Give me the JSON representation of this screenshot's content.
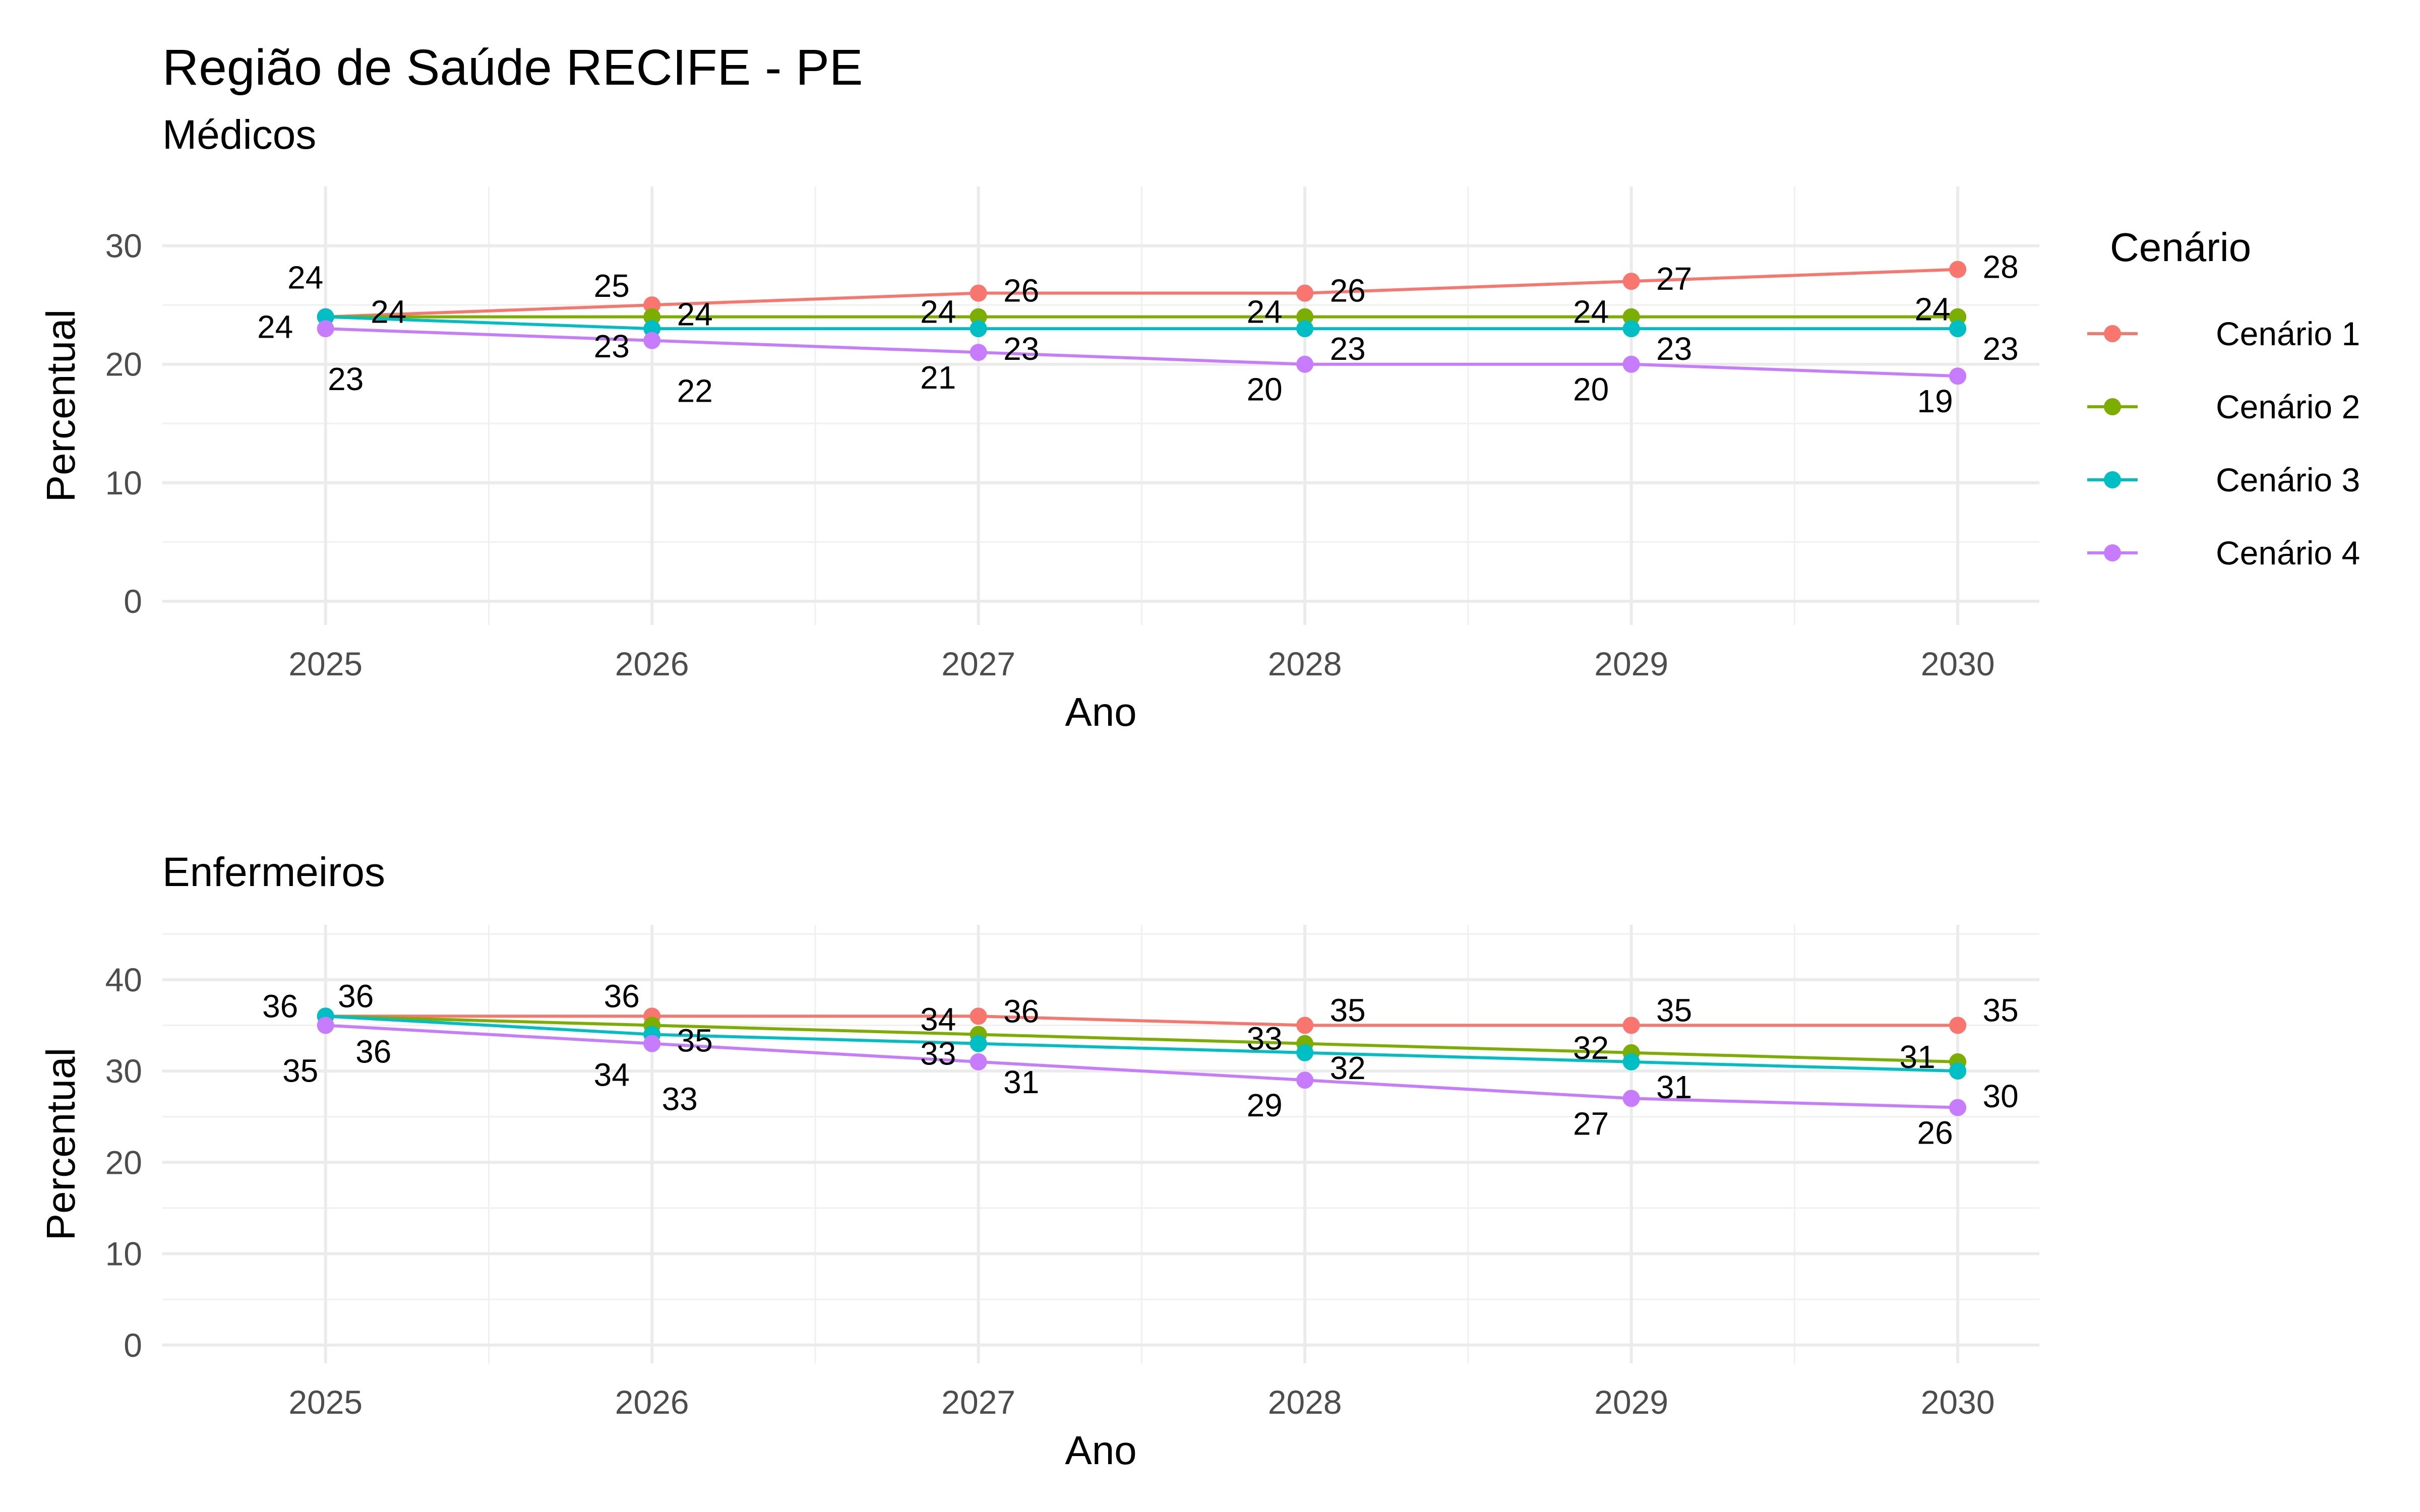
{
  "title": "Região de Saúde RECIFE - PE",
  "legend": {
    "title": "Cenário",
    "entries": [
      {
        "name": "Cenário 1",
        "color": "#F8766D"
      },
      {
        "name": "Cenário 2",
        "color": "#7CAE00"
      },
      {
        "name": "Cenário 3",
        "color": "#00BFC4"
      },
      {
        "name": "Cenário 4",
        "color": "#C77CFF"
      }
    ],
    "position": "right"
  },
  "chart_data": [
    {
      "type": "line",
      "subtitle": "Médicos",
      "xlabel": "Ano",
      "ylabel": "Percentual",
      "x": [
        2025,
        2026,
        2027,
        2028,
        2029,
        2030
      ],
      "x_ticks": [
        "2025",
        "2026",
        "2027",
        "2028",
        "2029",
        "2030"
      ],
      "y_ticks": [
        "0",
        "10",
        "20",
        "30"
      ],
      "ylim": [
        -2,
        35
      ],
      "grid": true,
      "series": [
        {
          "name": "Cenário 1",
          "values": [
            24,
            25,
            26,
            26,
            27,
            28
          ]
        },
        {
          "name": "Cenário 2",
          "values": [
            24,
            24,
            24,
            24,
            24,
            24
          ]
        },
        {
          "name": "Cenário 3",
          "values": [
            24,
            23,
            23,
            23,
            23,
            23
          ]
        },
        {
          "name": "Cenário 4",
          "values": [
            23,
            22,
            21,
            20,
            20,
            19
          ]
        }
      ]
    },
    {
      "type": "line",
      "subtitle": "Enfermeiros",
      "xlabel": "Ano",
      "ylabel": "Percentual",
      "x": [
        2025,
        2026,
        2027,
        2028,
        2029,
        2030
      ],
      "x_ticks": [
        "2025",
        "2026",
        "2027",
        "2028",
        "2029",
        "2030"
      ],
      "y_ticks": [
        "0",
        "10",
        "20",
        "30",
        "40"
      ],
      "ylim": [
        -2,
        46
      ],
      "grid": true,
      "series": [
        {
          "name": "Cenário 1",
          "values": [
            36,
            36,
            36,
            35,
            35,
            35
          ]
        },
        {
          "name": "Cenário 2",
          "values": [
            36,
            35,
            34,
            33,
            32,
            31
          ]
        },
        {
          "name": "Cenário 3",
          "values": [
            36,
            34,
            33,
            32,
            31,
            30
          ]
        },
        {
          "name": "Cenário 4",
          "values": [
            35,
            33,
            31,
            29,
            27,
            26
          ]
        }
      ]
    }
  ]
}
